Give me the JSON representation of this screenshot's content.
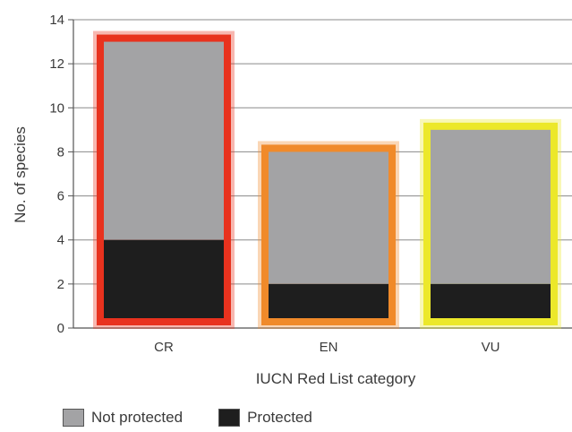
{
  "chart_data": {
    "type": "bar",
    "stacked": true,
    "categories": [
      "CR",
      "EN",
      "VU"
    ],
    "series": [
      {
        "name": "Protected",
        "values": [
          4,
          2,
          2
        ],
        "color": "#1e1e1e"
      },
      {
        "name": "Not protected",
        "values": [
          9,
          6,
          7
        ],
        "color": "#a3a3a5"
      }
    ],
    "totals": [
      13,
      8,
      9
    ],
    "category_outline_colors": [
      "#e8321e",
      "#f08a2a",
      "#ece82a"
    ],
    "xlabel": "IUCN Red List category",
    "ylabel": "No. of species",
    "ylim": [
      0,
      14
    ],
    "yticks": [
      0,
      2,
      4,
      6,
      8,
      10,
      12,
      14
    ],
    "grid": true,
    "legend_position": "bottom"
  }
}
